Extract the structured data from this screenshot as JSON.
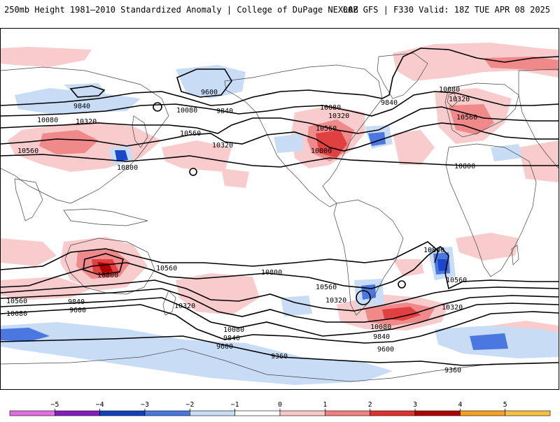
{
  "header": {
    "left_title": "250mb Height 1981–2010 Standardized Anomaly | College of DuPage NEXLAB",
    "right_title": "00Z GFS | F330 Valid: 18Z TUE APR 08 2025"
  },
  "colorbar": {
    "ticks": [
      "−5",
      "−4",
      "−3",
      "−2",
      "−1",
      "0",
      "1",
      "2",
      "3",
      "4",
      "5"
    ],
    "colors": [
      "#e070e0",
      "#8020c0",
      "#1040c0",
      "#4a78e0",
      "#c8dcf6",
      "#ffffff",
      "#f8c8c8",
      "#f08080",
      "#e03030",
      "#b00000",
      "#f8a020",
      "#f8c040"
    ]
  },
  "anomaly_colors": {
    "pos1": "#f8cccc",
    "pos2": "#f08a8a",
    "pos3": "#e04040",
    "pos4": "#b00000",
    "neg1": "#c8dcf6",
    "neg2": "#4a78e0",
    "neg3": "#1a48c8"
  },
  "contour_labels": {
    "l1": "9600",
    "l2": "9840",
    "l3": "10080",
    "l4": "10320",
    "l5": "10080",
    "l6": "9840",
    "l7": "10560",
    "l8": "10560",
    "l9": "10800",
    "l10": "10320",
    "l11": "10080",
    "l12": "10320",
    "l13": "10560",
    "l14": "10800",
    "l15": "9840",
    "l16": "10080",
    "l17": "10320",
    "l18": "10560",
    "l19": "10800",
    "l20": "10800",
    "l21": "10560",
    "l22": "10800",
    "l23": "10560",
    "l24": "10320",
    "l25": "10800",
    "l26": "10560",
    "l27": "10320",
    "l28": "10560",
    "l29": "9840",
    "l30": "9600",
    "l31": "10080",
    "l32": "10320",
    "l33": "10080",
    "l34": "9840",
    "l35": "9600",
    "l36": "9360",
    "l37": "10080",
    "l38": "9840",
    "l39": "9600",
    "l40": "9360"
  }
}
